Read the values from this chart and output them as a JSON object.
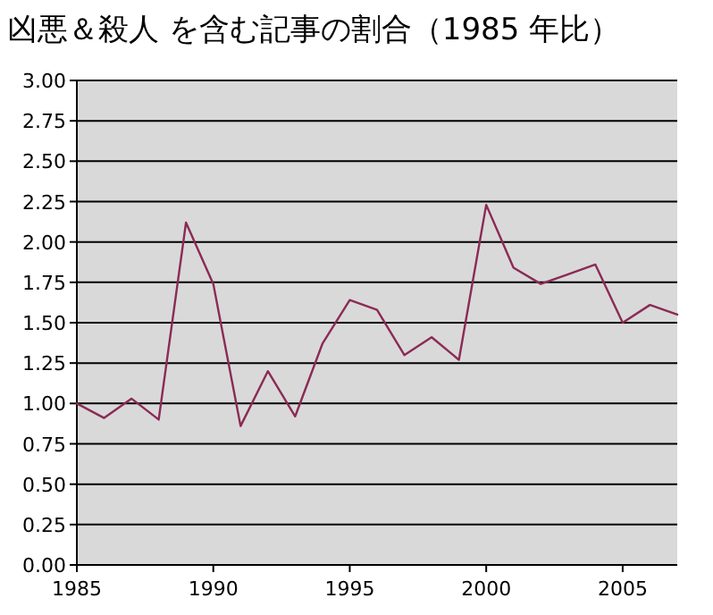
{
  "chart_data": {
    "type": "line",
    "title": "凶悪＆殺人 を含む記事の割合（1985 年比）",
    "x": [
      1985,
      1986,
      1987,
      1988,
      1989,
      1990,
      1991,
      1992,
      1993,
      1994,
      1995,
      1996,
      1997,
      1998,
      1999,
      2000,
      2001,
      2002,
      2003,
      2004,
      2005,
      2006,
      2007
    ],
    "series": [
      {
        "color": "#8b2a55",
        "values": [
          1.0,
          0.91,
          1.03,
          0.9,
          2.12,
          1.74,
          0.86,
          1.2,
          0.92,
          1.37,
          1.64,
          1.58,
          1.3,
          1.41,
          1.27,
          2.23,
          1.84,
          1.74,
          1.8,
          1.86,
          1.5,
          1.61,
          1.55
        ]
      }
    ],
    "xlim": [
      1985,
      2007
    ],
    "xticks": [
      1985,
      1990,
      1995,
      2000,
      2005
    ],
    "ylim": [
      0,
      3
    ],
    "yticks": [
      {
        "value": 0,
        "label": "0.00"
      },
      {
        "value": 0.25,
        "label": "0.25"
      },
      {
        "value": 0.5,
        "label": "0.50"
      },
      {
        "value": 0.75,
        "label": "0.75"
      },
      {
        "value": 1,
        "label": "1.00"
      },
      {
        "value": 1.25,
        "label": "1.25"
      },
      {
        "value": 1.5,
        "label": "1.50"
      },
      {
        "value": 1.75,
        "label": "1.75"
      },
      {
        "value": 2,
        "label": "2.00"
      },
      {
        "value": 2.25,
        "label": "2.25"
      },
      {
        "value": 2.5,
        "label": "2.50"
      },
      {
        "value": 2.75,
        "label": "2.75"
      },
      {
        "value": 3,
        "label": "3.00"
      }
    ],
    "grid": "y",
    "marker": "none",
    "line_style": "solid"
  }
}
